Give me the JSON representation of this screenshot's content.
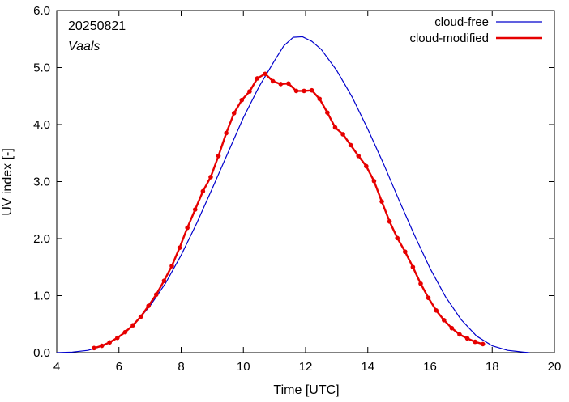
{
  "chart_data": {
    "type": "line",
    "title": "",
    "xlabel": "Time  [UTC]",
    "ylabel": "UV index  [-]",
    "xlim": [
      4,
      20
    ],
    "ylim": [
      0,
      6
    ],
    "x_ticks": [
      4,
      6,
      8,
      10,
      12,
      14,
      16,
      18,
      20
    ],
    "y_ticks": [
      0,
      1,
      2,
      3,
      4,
      5,
      6
    ],
    "x_tick_labels": [
      "4",
      "6",
      "8",
      "10",
      "12",
      "14",
      "16",
      "18",
      "20"
    ],
    "y_tick_labels": [
      "0.0",
      "1.0",
      "2.0",
      "3.0",
      "4.0",
      "5.0",
      "6.0"
    ],
    "grid": false,
    "legend_position": "top-right",
    "annotations": {
      "date": "20250821",
      "location": "Vaals"
    },
    "series": [
      {
        "name": "cloud-free",
        "color": "#0000cc",
        "markers": false,
        "points": [
          [
            4.0,
            0.0
          ],
          [
            4.5,
            0.01
          ],
          [
            5.0,
            0.04
          ],
          [
            5.5,
            0.12
          ],
          [
            6.0,
            0.27
          ],
          [
            6.5,
            0.5
          ],
          [
            7.0,
            0.82
          ],
          [
            7.5,
            1.22
          ],
          [
            8.0,
            1.71
          ],
          [
            8.5,
            2.27
          ],
          [
            9.0,
            2.88
          ],
          [
            9.5,
            3.5
          ],
          [
            10.0,
            4.12
          ],
          [
            10.5,
            4.66
          ],
          [
            11.0,
            5.12
          ],
          [
            11.3,
            5.38
          ],
          [
            11.6,
            5.53
          ],
          [
            11.9,
            5.54
          ],
          [
            12.2,
            5.46
          ],
          [
            12.5,
            5.32
          ],
          [
            13.0,
            4.95
          ],
          [
            13.5,
            4.48
          ],
          [
            14.0,
            3.92
          ],
          [
            14.5,
            3.32
          ],
          [
            15.0,
            2.68
          ],
          [
            15.5,
            2.06
          ],
          [
            16.0,
            1.48
          ],
          [
            16.5,
            0.98
          ],
          [
            17.0,
            0.58
          ],
          [
            17.5,
            0.29
          ],
          [
            18.0,
            0.12
          ],
          [
            18.5,
            0.04
          ],
          [
            19.0,
            0.01
          ],
          [
            19.2,
            0.0
          ]
        ]
      },
      {
        "name": "cloud-modified",
        "color": "#e60000",
        "markers": true,
        "points": [
          [
            5.2,
            0.08
          ],
          [
            5.45,
            0.12
          ],
          [
            5.7,
            0.18
          ],
          [
            5.95,
            0.26
          ],
          [
            6.2,
            0.36
          ],
          [
            6.45,
            0.48
          ],
          [
            6.7,
            0.63
          ],
          [
            6.95,
            0.82
          ],
          [
            7.2,
            1.02
          ],
          [
            7.45,
            1.26
          ],
          [
            7.7,
            1.52
          ],
          [
            7.95,
            1.84
          ],
          [
            8.2,
            2.19
          ],
          [
            8.45,
            2.51
          ],
          [
            8.7,
            2.83
          ],
          [
            8.95,
            3.08
          ],
          [
            9.2,
            3.45
          ],
          [
            9.45,
            3.85
          ],
          [
            9.7,
            4.2
          ],
          [
            9.95,
            4.43
          ],
          [
            10.2,
            4.58
          ],
          [
            10.45,
            4.81
          ],
          [
            10.7,
            4.89
          ],
          [
            10.95,
            4.76
          ],
          [
            11.2,
            4.71
          ],
          [
            11.45,
            4.72
          ],
          [
            11.7,
            4.59
          ],
          [
            11.95,
            4.59
          ],
          [
            12.2,
            4.6
          ],
          [
            12.45,
            4.45
          ],
          [
            12.7,
            4.21
          ],
          [
            12.95,
            3.95
          ],
          [
            13.2,
            3.83
          ],
          [
            13.45,
            3.64
          ],
          [
            13.7,
            3.45
          ],
          [
            13.95,
            3.27
          ],
          [
            14.2,
            3.01
          ],
          [
            14.45,
            2.65
          ],
          [
            14.7,
            2.3
          ],
          [
            14.95,
            2.01
          ],
          [
            15.2,
            1.77
          ],
          [
            15.45,
            1.5
          ],
          [
            15.7,
            1.21
          ],
          [
            15.95,
            0.96
          ],
          [
            16.2,
            0.74
          ],
          [
            16.45,
            0.57
          ],
          [
            16.7,
            0.43
          ],
          [
            16.95,
            0.32
          ],
          [
            17.2,
            0.25
          ],
          [
            17.45,
            0.19
          ],
          [
            17.7,
            0.15
          ]
        ]
      }
    ]
  }
}
